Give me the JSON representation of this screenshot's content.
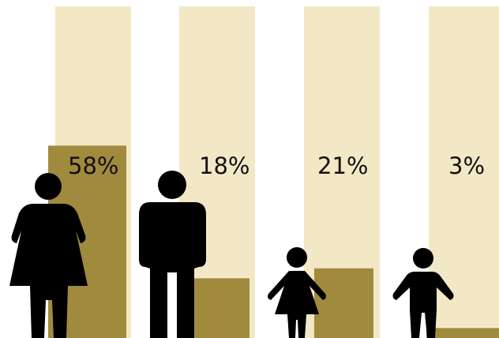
{
  "chart_data": {
    "type": "bar",
    "categories": [
      "woman",
      "man",
      "girl",
      "boy"
    ],
    "values": [
      58,
      18,
      21,
      3
    ],
    "labels": [
      "58%",
      "18%",
      "21%",
      "3%"
    ],
    "ylim": [
      0,
      100
    ],
    "grid": false,
    "legend": "none",
    "icons": [
      "woman-icon",
      "man-icon",
      "girl-icon",
      "boy-icon"
    ]
  },
  "colors": {
    "track": "#f3e8c6",
    "fill": "#a08a3e",
    "icon": "#000000",
    "text": "#111111"
  }
}
